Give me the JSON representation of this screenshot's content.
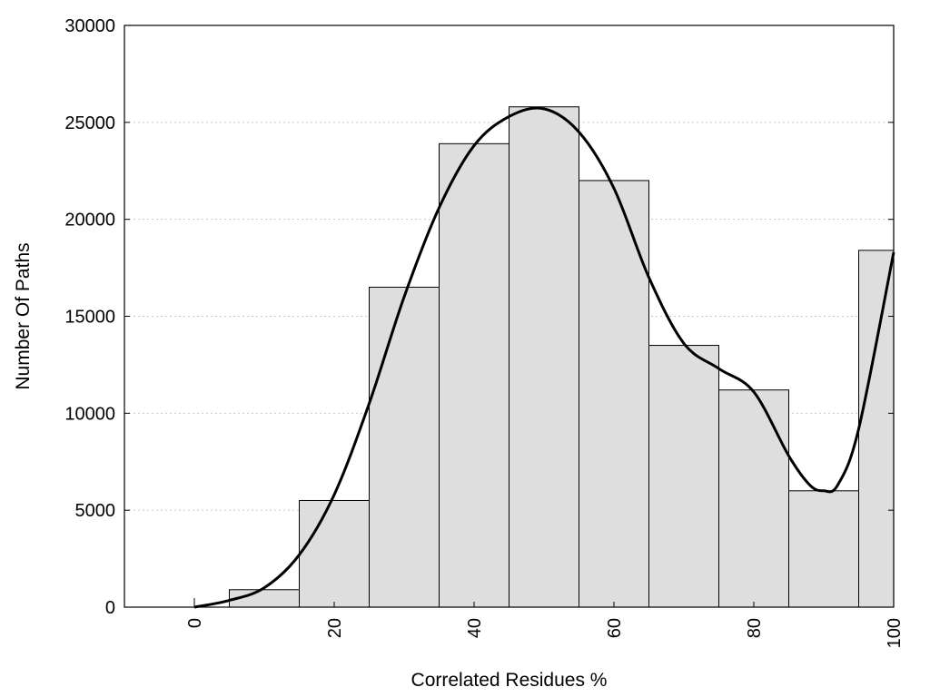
{
  "chart_data": {
    "type": "bar",
    "title": "",
    "xlabel": "Correlated Residues %",
    "ylabel": "Number Of Paths",
    "xlim": [
      -10,
      100
    ],
    "ylim": [
      0,
      30000
    ],
    "grid": "horizontal dotted",
    "bars": [
      {
        "x0": -5,
        "x1": 5,
        "value": 0
      },
      {
        "x0": 5,
        "x1": 15,
        "value": 900
      },
      {
        "x0": 15,
        "x1": 25,
        "value": 5500
      },
      {
        "x0": 25,
        "x1": 35,
        "value": 16500
      },
      {
        "x0": 35,
        "x1": 45,
        "value": 23900
      },
      {
        "x0": 45,
        "x1": 55,
        "value": 25800
      },
      {
        "x0": 55,
        "x1": 65,
        "value": 22000
      },
      {
        "x0": 65,
        "x1": 75,
        "value": 13500
      },
      {
        "x0": 75,
        "x1": 85,
        "value": 11200
      },
      {
        "x0": 85,
        "x1": 95,
        "value": 6000
      },
      {
        "x0": 95,
        "x1": 100,
        "value": 18400
      }
    ],
    "curve": {
      "x": [
        0,
        5,
        10,
        15,
        20,
        25,
        30,
        35,
        40,
        45,
        50,
        55,
        60,
        65,
        70,
        75,
        80,
        85,
        88,
        90,
        92,
        95,
        100
      ],
      "y": [
        0,
        350,
        1000,
        2700,
        5800,
        10500,
        16000,
        20600,
        23800,
        25300,
        25700,
        24500,
        21600,
        17000,
        13600,
        12300,
        11100,
        7800,
        6300,
        6000,
        6300,
        9200,
        18300
      ]
    },
    "x_ticks": [
      0,
      20,
      40,
      60,
      80,
      100
    ],
    "y_ticks": [
      0,
      5000,
      10000,
      15000,
      20000,
      25000,
      30000
    ],
    "colors": {
      "bar_fill": "#dedede",
      "bar_stroke": "#000000",
      "curve": "#000000",
      "grid": "#c8c8c8"
    }
  }
}
